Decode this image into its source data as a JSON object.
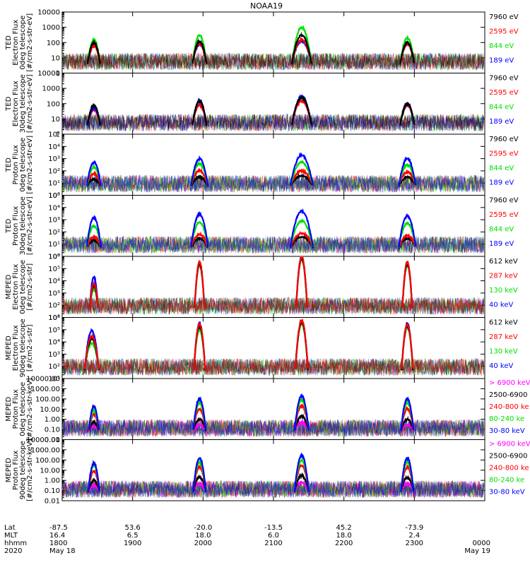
{
  "figure": {
    "title": "NOAA19",
    "time_start": "18:00",
    "time_end": "24:00",
    "colors": {
      "black": "#000000",
      "red": "#ff0000",
      "green": "#00e000",
      "blue": "#0000ff",
      "magenta": "#ff00ff"
    }
  },
  "chart_data": [
    {
      "type": "line",
      "log": true,
      "ylim": [
        1,
        10000
      ],
      "ylabel": [
        "TED",
        "Electron Flux",
        "0deg telescope",
        "[#/cm2-s-str-eV]"
      ],
      "ytick_labels": [
        "1",
        "10",
        "100",
        "1000",
        "10000"
      ],
      "ytick_values": [
        1,
        10,
        100,
        1000,
        10000
      ],
      "legend": [
        {
          "label": "7960 eV",
          "color": "#000000"
        },
        {
          "label": "2595 eV",
          "color": "#ff0000"
        },
        {
          "label": "844 eV",
          "color": "#00e000"
        },
        {
          "label": "189 eV",
          "color": "#0000ff"
        }
      ],
      "passes": [
        {
          "center": 18.45,
          "width": 0.09,
          "peaks": [
            80,
            150,
            60,
            100
          ],
          "order": [
            "blue",
            "green",
            "red",
            "black"
          ]
        },
        {
          "center": 19.95,
          "width": 0.1,
          "peaks": [
            80,
            300,
            80,
            120
          ],
          "order": [
            "blue",
            "green",
            "red",
            "black"
          ]
        },
        {
          "center": 21.4,
          "width": 0.14,
          "peaks": [
            120,
            1000,
            150,
            300
          ],
          "order": [
            "blue",
            "green",
            "red",
            "black"
          ]
        },
        {
          "center": 22.9,
          "width": 0.1,
          "peaks": [
            80,
            200,
            80,
            100
          ],
          "order": [
            "blue",
            "green",
            "red",
            "black"
          ]
        }
      ]
    },
    {
      "type": "line",
      "log": true,
      "ylim": [
        1,
        10000
      ],
      "ylabel": [
        "TED",
        "Electron Flux",
        "30deg telescope",
        "[#/cm2-s-str-eV]"
      ],
      "ytick_labels": [
        "1",
        "10",
        "100",
        "1000",
        "10000"
      ],
      "ytick_values": [
        1,
        10,
        100,
        1000,
        10000
      ],
      "legend": [
        {
          "label": "7960 eV",
          "color": "#000000"
        },
        {
          "label": "2595 eV",
          "color": "#ff0000"
        },
        {
          "label": "844 eV",
          "color": "#00e000"
        },
        {
          "label": "189 eV",
          "color": "#0000ff"
        }
      ],
      "passes": [
        {
          "center": 18.45,
          "width": 0.09,
          "peaks": [
            50,
            40,
            50,
            80
          ],
          "order": [
            "green",
            "red",
            "blue",
            "black"
          ]
        },
        {
          "center": 19.95,
          "width": 0.1,
          "peaks": [
            100,
            80,
            150,
            150
          ],
          "order": [
            "green",
            "red",
            "blue",
            "black"
          ]
        },
        {
          "center": 21.4,
          "width": 0.14,
          "peaks": [
            200,
            150,
            300,
            250
          ],
          "order": [
            "green",
            "red",
            "blue",
            "black"
          ]
        },
        {
          "center": 22.9,
          "width": 0.1,
          "peaks": [
            80,
            80,
            100,
            100
          ],
          "order": [
            "green",
            "red",
            "blue",
            "black"
          ]
        }
      ]
    },
    {
      "type": "line",
      "log": true,
      "ylim": [
        1,
        100000
      ],
      "ylabel": [
        "TED",
        "Proton Flux",
        "0deg telescope",
        "[#/cm2-s-str-eV]"
      ],
      "ytick_labels": [
        "10⁰",
        "10¹",
        "10²",
        "10³",
        "10⁴",
        "10⁵"
      ],
      "ytick_values": [
        1,
        10,
        100,
        1000,
        10000,
        100000
      ],
      "legend": [
        {
          "label": "7960 eV",
          "color": "#000000"
        },
        {
          "label": "2595 eV",
          "color": "#ff0000"
        },
        {
          "label": "844 eV",
          "color": "#00e000"
        },
        {
          "label": "189 eV",
          "color": "#0000ff"
        }
      ],
      "passes": [
        {
          "center": 18.45,
          "width": 0.1,
          "peaks": [
            20,
            60,
            200,
            500
          ],
          "order": [
            "black",
            "red",
            "green",
            "blue"
          ]
        },
        {
          "center": 19.95,
          "width": 0.12,
          "peaks": [
            30,
            100,
            400,
            1000
          ],
          "order": [
            "black",
            "red",
            "green",
            "blue"
          ]
        },
        {
          "center": 21.4,
          "width": 0.16,
          "peaks": [
            40,
            100,
            500,
            2000
          ],
          "order": [
            "black",
            "red",
            "green",
            "blue"
          ]
        },
        {
          "center": 22.9,
          "width": 0.12,
          "peaks": [
            30,
            80,
            300,
            1000
          ],
          "order": [
            "black",
            "red",
            "green",
            "blue"
          ]
        }
      ]
    },
    {
      "type": "line",
      "log": true,
      "ylim": [
        1,
        100000
      ],
      "ylabel": [
        "TED",
        "Proton Flux",
        "30deg telescope",
        "[#/cm2-s-str-eV]"
      ],
      "ytick_labels": [
        "10⁰",
        "10¹",
        "10²",
        "10³",
        "10⁴",
        "10⁵"
      ],
      "ytick_values": [
        1,
        10,
        100,
        1000,
        10000,
        100000
      ],
      "legend": [
        {
          "label": "7960 eV",
          "color": "#000000"
        },
        {
          "label": "2595 eV",
          "color": "#ff0000"
        },
        {
          "label": "844 eV",
          "color": "#00e000"
        },
        {
          "label": "189 eV",
          "color": "#0000ff"
        }
      ],
      "passes": [
        {
          "center": 18.45,
          "width": 0.1,
          "peaks": [
            20,
            40,
            300,
            1500
          ],
          "order": [
            "black",
            "red",
            "green",
            "blue"
          ]
        },
        {
          "center": 19.95,
          "width": 0.12,
          "peaks": [
            30,
            60,
            600,
            3000
          ],
          "order": [
            "black",
            "red",
            "green",
            "blue"
          ]
        },
        {
          "center": 21.4,
          "width": 0.16,
          "peaks": [
            40,
            80,
            800,
            5000
          ],
          "order": [
            "black",
            "red",
            "green",
            "blue"
          ]
        },
        {
          "center": 22.9,
          "width": 0.12,
          "peaks": [
            30,
            50,
            500,
            2000
          ],
          "order": [
            "black",
            "red",
            "green",
            "blue"
          ]
        }
      ]
    },
    {
      "type": "line",
      "log": true,
      "ylim": [
        10,
        1000000
      ],
      "ylabel": [
        "MEPED",
        "Electron Flux",
        "0deg telescope",
        "[#/cm2-s-str]"
      ],
      "ytick_labels": [
        "10¹",
        "10²",
        "10³",
        "10⁴",
        "10⁵",
        "10⁶"
      ],
      "ytick_values": [
        10,
        100,
        1000,
        10000,
        100000,
        1000000
      ],
      "legend": [
        {
          "label": "612 keV",
          "color": "#000000"
        },
        {
          "label": "287 keV",
          "color": "#ff0000"
        },
        {
          "label": "130 keV",
          "color": "#00e000"
        },
        {
          "label": "40 keV",
          "color": "#0000ff"
        }
      ],
      "passes": [
        {
          "center": 18.45,
          "width": 0.06,
          "peaks": [
            20000,
            2000,
            4000,
            6000
          ],
          "order": [
            "blue",
            "green",
            "black",
            "red"
          ]
        },
        {
          "center": 19.95,
          "width": 0.07,
          "peaks": [
            300000,
            200000,
            250000,
            350000
          ],
          "order": [
            "blue",
            "green",
            "black",
            "red"
          ]
        },
        {
          "center": 21.4,
          "width": 0.08,
          "peaks": [
            800000,
            600000,
            700000,
            1000000
          ],
          "order": [
            "blue",
            "green",
            "black",
            "red"
          ]
        },
        {
          "center": 22.9,
          "width": 0.07,
          "peaks": [
            300000,
            200000,
            250000,
            350000
          ],
          "order": [
            "blue",
            "green",
            "black",
            "red"
          ]
        }
      ]
    },
    {
      "type": "line",
      "log": true,
      "ylim": [
        10,
        1000000
      ],
      "ylabel": [
        "MEPED",
        "Electron Flux",
        "90deg telescope",
        "[#/cm2-s-str]"
      ],
      "ytick_labels": [
        "10¹",
        "10²",
        "10³",
        "10⁴",
        "10⁵",
        "10⁶"
      ],
      "ytick_values": [
        10,
        100,
        1000,
        10000,
        100000,
        1000000
      ],
      "legend": [
        {
          "label": "612 keV",
          "color": "#000000"
        },
        {
          "label": "287 keV",
          "color": "#ff0000"
        },
        {
          "label": "130 keV",
          "color": "#00e000"
        },
        {
          "label": "40 keV",
          "color": "#0000ff"
        }
      ],
      "passes": [
        {
          "center": 18.42,
          "width": 0.1,
          "peaks": [
            80000,
            8000,
            20000,
            30000
          ],
          "order": [
            "blue",
            "green",
            "black",
            "red"
          ]
        },
        {
          "center": 19.95,
          "width": 0.08,
          "peaks": [
            300000,
            100000,
            200000,
            300000
          ],
          "order": [
            "blue",
            "green",
            "black",
            "red"
          ]
        },
        {
          "center": 21.4,
          "width": 0.09,
          "peaks": [
            500000,
            300000,
            400000,
            600000
          ],
          "order": [
            "blue",
            "green",
            "black",
            "red"
          ]
        },
        {
          "center": 22.9,
          "width": 0.08,
          "peaks": [
            300000,
            150000,
            200000,
            250000
          ],
          "order": [
            "blue",
            "green",
            "black",
            "red"
          ]
        }
      ]
    },
    {
      "type": "line",
      "log": true,
      "ylim": [
        0.01,
        10000
      ],
      "ylabel": [
        "MEPED",
        "Proton Flux",
        "0deg telescope",
        "[#/cm2-s-str-keV]"
      ],
      "ytick_labels": [
        "0.01",
        "0.10",
        "1.00",
        "10.00",
        "100.00",
        "1000.00",
        "10000.00"
      ],
      "ytick_values": [
        0.01,
        0.1,
        1,
        10,
        100,
        1000,
        10000
      ],
      "legend": [
        {
          "label": "> 6900 keV",
          "color": "#ff00ff"
        },
        {
          "label": "2500-6900",
          "color": "#000000"
        },
        {
          "label": "240-800 ke",
          "color": "#ff0000"
        },
        {
          "label": "80-240 ke",
          "color": "#00e000"
        },
        {
          "label": "30-80 keV",
          "color": "#0000ff"
        }
      ],
      "passes": [
        {
          "center": 18.45,
          "width": 0.07,
          "peaks": [
            0.2,
            0.5,
            3,
            8,
            20
          ],
          "order": [
            "magenta",
            "black",
            "red",
            "green",
            "blue"
          ]
        },
        {
          "center": 19.95,
          "width": 0.09,
          "peaks": [
            0.3,
            1,
            10,
            40,
            100
          ],
          "order": [
            "magenta",
            "black",
            "red",
            "green",
            "blue"
          ]
        },
        {
          "center": 21.4,
          "width": 0.1,
          "peaks": [
            0.5,
            2,
            20,
            80,
            200
          ],
          "order": [
            "magenta",
            "black",
            "red",
            "green",
            "blue"
          ]
        },
        {
          "center": 22.9,
          "width": 0.09,
          "peaks": [
            0.3,
            1,
            10,
            40,
            100
          ],
          "order": [
            "magenta",
            "black",
            "red",
            "green",
            "blue"
          ]
        }
      ]
    },
    {
      "type": "line",
      "log": true,
      "ylim": [
        0.01,
        10000
      ],
      "ylabel": [
        "MEPED",
        "Proton Flux",
        "90deg telescope",
        "[#/cm2-s-str-keV]"
      ],
      "ytick_labels": [
        "0.01",
        "0.10",
        "1.00",
        "10.00",
        "100.00",
        "1000.00",
        "10000.00"
      ],
      "ytick_values": [
        0.01,
        0.1,
        1,
        10,
        100,
        1000,
        10000
      ],
      "legend": [
        {
          "label": "> 6900 keV",
          "color": "#ff00ff"
        },
        {
          "label": "2500-6900",
          "color": "#000000"
        },
        {
          "label": "240-800 ke",
          "color": "#ff0000"
        },
        {
          "label": "80-240 ke",
          "color": "#00e000"
        },
        {
          "label": "30-80 keV",
          "color": "#0000ff"
        }
      ],
      "passes": [
        {
          "center": 18.45,
          "width": 0.08,
          "peaks": [
            0.3,
            1,
            8,
            30,
            50
          ],
          "order": [
            "magenta",
            "black",
            "red",
            "green",
            "blue"
          ]
        },
        {
          "center": 19.95,
          "width": 0.09,
          "peaks": [
            0.5,
            2,
            20,
            60,
            150
          ],
          "order": [
            "magenta",
            "black",
            "red",
            "green",
            "blue"
          ]
        },
        {
          "center": 21.4,
          "width": 0.1,
          "peaks": [
            0.6,
            3,
            30,
            100,
            300
          ],
          "order": [
            "magenta",
            "black",
            "red",
            "green",
            "blue"
          ]
        },
        {
          "center": 22.9,
          "width": 0.09,
          "peaks": [
            0.5,
            2,
            20,
            60,
            150
          ],
          "order": [
            "magenta",
            "black",
            "red",
            "green",
            "blue"
          ]
        }
      ]
    }
  ],
  "footer": {
    "row_labels": [
      "Lat",
      "MLT",
      "hhmm",
      "2020"
    ],
    "columns": [
      {
        "lat": "-87.5",
        "mlt": "16.4",
        "hhmm": "1800",
        "date": "May 18"
      },
      {
        "lat": "53.6",
        "mlt": "6.5",
        "hhmm": "1900",
        "date": ""
      },
      {
        "lat": "-20.0",
        "mlt": "18.0",
        "hhmm": "2000",
        "date": ""
      },
      {
        "lat": "-13.5",
        "mlt": "6.0",
        "hhmm": "2100",
        "date": ""
      },
      {
        "lat": "45.2",
        "mlt": "18.0",
        "hhmm": "2200",
        "date": ""
      },
      {
        "lat": "-73.9",
        "mlt": "2.4",
        "hhmm": "2300",
        "date": ""
      },
      {
        "lat": "",
        "mlt": "",
        "hhmm": "0000",
        "date": "May 19"
      }
    ]
  }
}
